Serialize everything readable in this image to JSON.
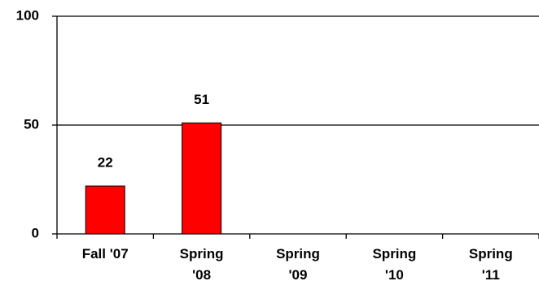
{
  "chart_data": {
    "type": "bar",
    "categories": [
      "Fall '07",
      "Spring '08",
      "Spring '09",
      "Spring '10",
      "Spring '11"
    ],
    "values": [
      22,
      51,
      null,
      null,
      null
    ],
    "color": "#ff0000",
    "ylim": [
      0,
      100
    ],
    "yticks": [
      0,
      50,
      100
    ],
    "grid": true
  }
}
